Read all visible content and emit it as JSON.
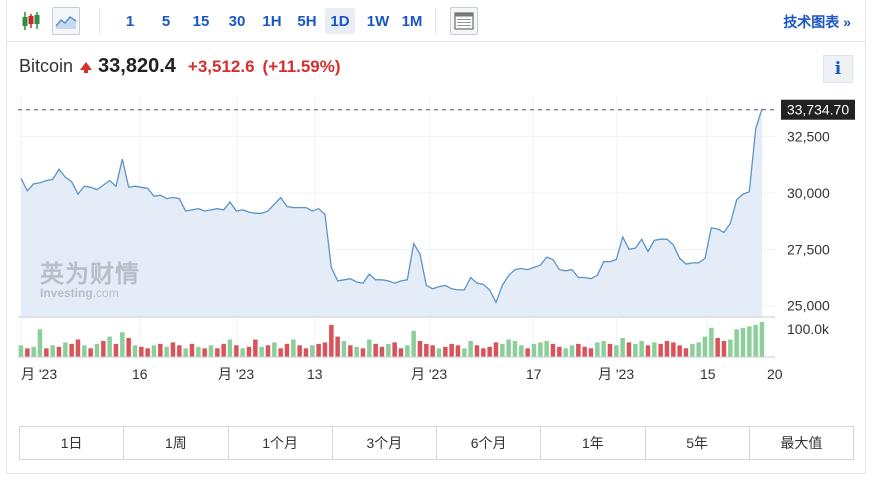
{
  "toolbar": {
    "intervals": [
      "1",
      "5",
      "15",
      "30",
      "1H",
      "5H",
      "1D",
      "1W",
      "1M"
    ],
    "active_interval": "1D",
    "tech_chart_label": "技术图表 »"
  },
  "header": {
    "name": "Bitcoin",
    "price": "33,820.4",
    "change": "+3,512.6",
    "change_pct": "(+11.59%)",
    "info_label": "i"
  },
  "watermark": {
    "cn": "英为财情",
    "en_main": "Investing",
    "en_suffix": ".com"
  },
  "colors": {
    "line": "#5b93c9",
    "area": "#e4edf7",
    "up_volume": "#8ccf9a",
    "down_volume": "#d9545a",
    "accent": "#1a56c4",
    "down": "#d32f2f"
  },
  "chart_data": {
    "type": "area",
    "title": "",
    "xlabel": "",
    "ylabel": "",
    "ylim": [
      24500,
      33900
    ],
    "y_ticks": [
      "32,500",
      "30,000",
      "27,500",
      "25,000"
    ],
    "y_tick_values": [
      32500,
      30000,
      27500,
      25000
    ],
    "current_value_label": "33,734.70",
    "current_value": 33734.7,
    "x_tick_labels": [
      "月 '23",
      "16",
      "月 '23",
      "13",
      "月 '23",
      "17",
      "月 '23",
      "15",
      "20"
    ],
    "series": [
      {
        "values": [
          30650,
          30100,
          30400,
          30450,
          30550,
          30600,
          31050,
          30700,
          30500,
          29950,
          30300,
          30250,
          30150,
          30350,
          30550,
          30300,
          31500,
          30250,
          30300,
          30250,
          30200,
          29850,
          29900,
          29750,
          29800,
          29750,
          29200,
          29250,
          29300,
          29200,
          29250,
          29300,
          29250,
          29600,
          29200,
          29250,
          29150,
          29100,
          29100,
          29200,
          29500,
          29800,
          29400,
          29350,
          29350,
          29350,
          29200,
          29300,
          29050,
          26700,
          26100,
          26150,
          26200,
          26050,
          26000,
          26400,
          26150,
          26150,
          26100,
          26000,
          26100,
          26150,
          27750,
          27300,
          25900,
          25750,
          25850,
          25900,
          25750,
          25700,
          25700,
          26250,
          26000,
          25950,
          25700,
          25150,
          25900,
          26350,
          26600,
          26650,
          26600,
          26700,
          26800,
          27150,
          27050,
          26600,
          26550,
          26600,
          26250,
          26250,
          26200,
          26350,
          26950,
          26950,
          27050,
          28050,
          27500,
          27550,
          27950,
          27400,
          27900,
          27950,
          27950,
          27700,
          27100,
          26850,
          26900,
          26900,
          27100,
          28450,
          28400,
          28250,
          28650,
          29700,
          29950,
          30050,
          32850,
          33734.7
        ]
      }
    ],
    "volume": {
      "axis_label": "100.0k",
      "axis_value": 100000,
      "values": [
        40,
        30,
        35,
        95,
        30,
        40,
        35,
        50,
        45,
        60,
        40,
        30,
        45,
        55,
        70,
        45,
        85,
        65,
        40,
        35,
        30,
        40,
        45,
        35,
        50,
        40,
        30,
        45,
        35,
        30,
        40,
        30,
        45,
        60,
        40,
        30,
        35,
        60,
        35,
        40,
        50,
        30,
        45,
        60,
        40,
        30,
        40,
        45,
        50,
        110,
        70,
        55,
        40,
        35,
        30,
        60,
        45,
        35,
        45,
        50,
        30,
        40,
        90,
        55,
        45,
        40,
        30,
        35,
        45,
        40,
        30,
        55,
        40,
        30,
        35,
        50,
        45,
        60,
        55,
        40,
        30,
        45,
        50,
        55,
        45,
        35,
        30,
        40,
        45,
        35,
        30,
        50,
        55,
        45,
        40,
        65,
        50,
        45,
        55,
        40,
        50,
        45,
        55,
        50,
        40,
        30,
        45,
        50,
        70,
        100,
        65,
        55,
        60,
        95,
        100,
        105,
        110,
        120
      ],
      "up": [
        true,
        false,
        true,
        true,
        false,
        true,
        false,
        true,
        false,
        false,
        true,
        false,
        true,
        false,
        true,
        false,
        true,
        false,
        true,
        false,
        false,
        true,
        false,
        true,
        false,
        false,
        true,
        false,
        true,
        false,
        true,
        false,
        false,
        true,
        false,
        true,
        false,
        false,
        true,
        false,
        true,
        false,
        false,
        true,
        false,
        false,
        true,
        false,
        false,
        false,
        false,
        true,
        false,
        true,
        false,
        true,
        false,
        false,
        true,
        false,
        false,
        true,
        true,
        false,
        false,
        false,
        true,
        false,
        false,
        false,
        true,
        true,
        false,
        false,
        false,
        false,
        true,
        true,
        true,
        true,
        false,
        true,
        true,
        true,
        false,
        false,
        true,
        true,
        false,
        false,
        false,
        true,
        true,
        false,
        true,
        true,
        false,
        true,
        true,
        false,
        true,
        false,
        false,
        false,
        false,
        false,
        true,
        true,
        true,
        true,
        false,
        false,
        true,
        true,
        true,
        true,
        true,
        true
      ]
    }
  },
  "periods": [
    "1日",
    "1周",
    "1个月",
    "3个月",
    "6个月",
    "1年",
    "5年",
    "最大值"
  ]
}
